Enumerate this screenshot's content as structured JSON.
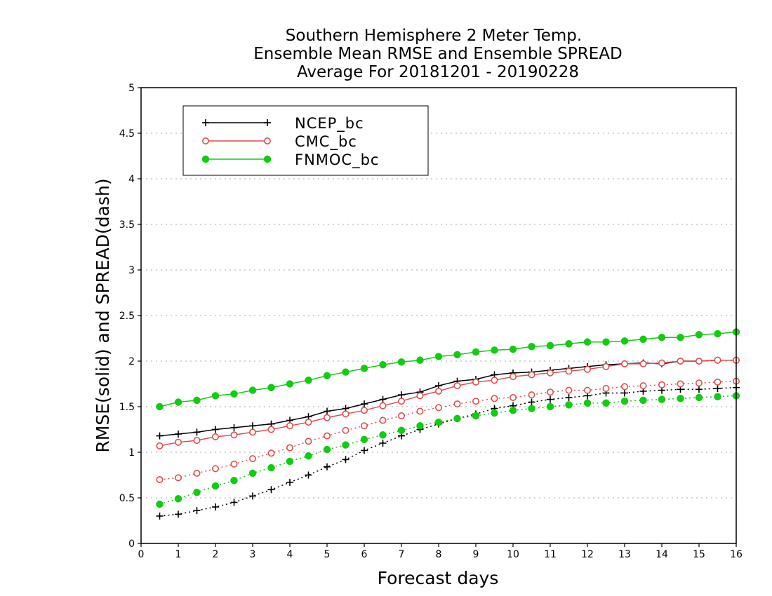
{
  "chart_data": {
    "type": "line",
    "title_lines": [
      "Southern Hemisphere 2 Meter Temp.",
      "Ensemble Mean RMSE and Ensemble SPREAD",
      "Average For 20181201 - 20190228"
    ],
    "xlabel": "Forecast days",
    "ylabel": "RMSE(solid) and SPREAD(dash)",
    "xlim": [
      0,
      16
    ],
    "ylim": [
      0,
      5
    ],
    "x_ticks": [
      0,
      1,
      2,
      3,
      4,
      5,
      6,
      7,
      8,
      9,
      10,
      11,
      12,
      13,
      14,
      15,
      16
    ],
    "y_ticks": [
      0,
      0.5,
      1,
      1.5,
      2,
      2.5,
      3,
      3.5,
      4,
      4.5,
      5
    ],
    "y_grid": true,
    "legend_position": "top-left",
    "x": [
      0.5,
      1,
      1.5,
      2,
      2.5,
      3,
      3.5,
      4,
      4.5,
      5,
      5.5,
      6,
      6.5,
      7,
      7.5,
      8,
      8.5,
      9,
      9.5,
      10,
      10.5,
      11,
      11.5,
      12,
      12.5,
      13,
      13.5,
      14,
      14.5,
      15,
      15.5,
      16
    ],
    "series": [
      {
        "name": "NCEP_bc",
        "color": "#000000",
        "marker": "plus",
        "rmse": [
          1.18,
          1.2,
          1.22,
          1.25,
          1.27,
          1.29,
          1.31,
          1.35,
          1.39,
          1.45,
          1.48,
          1.53,
          1.58,
          1.63,
          1.66,
          1.73,
          1.78,
          1.8,
          1.85,
          1.87,
          1.88,
          1.9,
          1.92,
          1.94,
          1.96,
          1.97,
          1.98,
          1.97,
          2.0,
          2.0,
          2.01,
          2.01
        ],
        "spread": [
          0.3,
          0.32,
          0.36,
          0.4,
          0.45,
          0.52,
          0.59,
          0.67,
          0.75,
          0.84,
          0.92,
          1.02,
          1.1,
          1.18,
          1.25,
          1.31,
          1.37,
          1.42,
          1.48,
          1.51,
          1.55,
          1.58,
          1.6,
          1.62,
          1.65,
          1.65,
          1.67,
          1.68,
          1.69,
          1.69,
          1.7,
          1.71
        ]
      },
      {
        "name": "CMC_bc",
        "color": "#e34c4c",
        "marker": "open-circle",
        "rmse": [
          1.07,
          1.11,
          1.13,
          1.17,
          1.19,
          1.22,
          1.25,
          1.29,
          1.33,
          1.38,
          1.42,
          1.46,
          1.51,
          1.56,
          1.62,
          1.67,
          1.73,
          1.77,
          1.79,
          1.83,
          1.85,
          1.87,
          1.89,
          1.91,
          1.94,
          1.97,
          1.97,
          1.98,
          2.0,
          2.0,
          2.01,
          2.01
        ],
        "spread": [
          0.7,
          0.72,
          0.77,
          0.82,
          0.87,
          0.93,
          0.99,
          1.05,
          1.12,
          1.18,
          1.24,
          1.29,
          1.35,
          1.4,
          1.45,
          1.49,
          1.53,
          1.56,
          1.59,
          1.6,
          1.63,
          1.66,
          1.68,
          1.68,
          1.7,
          1.72,
          1.73,
          1.74,
          1.75,
          1.76,
          1.77,
          1.78
        ]
      },
      {
        "name": "FNMOC_bc",
        "color": "#11cc11",
        "marker": "filled-circle",
        "rmse": [
          1.5,
          1.55,
          1.57,
          1.62,
          1.64,
          1.68,
          1.71,
          1.75,
          1.79,
          1.84,
          1.88,
          1.92,
          1.96,
          1.99,
          2.01,
          2.05,
          2.07,
          2.1,
          2.12,
          2.13,
          2.16,
          2.17,
          2.19,
          2.21,
          2.21,
          2.22,
          2.24,
          2.26,
          2.26,
          2.29,
          2.3,
          2.32
        ],
        "spread": [
          0.43,
          0.49,
          0.56,
          0.63,
          0.69,
          0.77,
          0.83,
          0.9,
          0.96,
          1.03,
          1.08,
          1.14,
          1.19,
          1.24,
          1.29,
          1.33,
          1.37,
          1.4,
          1.43,
          1.46,
          1.48,
          1.5,
          1.52,
          1.54,
          1.54,
          1.56,
          1.57,
          1.58,
          1.59,
          1.6,
          1.61,
          1.62
        ]
      }
    ]
  }
}
